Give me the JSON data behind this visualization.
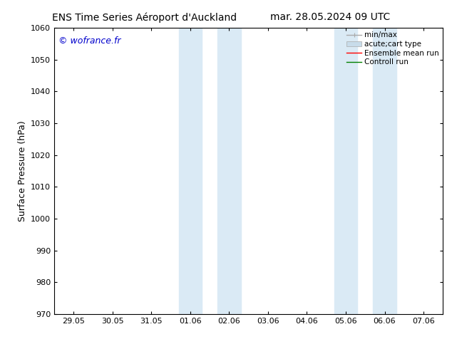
{
  "title_left": "ENS Time Series Aéroport d'Auckland",
  "title_right": "mar. 28.05.2024 09 UTC",
  "ylabel": "Surface Pressure (hPa)",
  "ylim": [
    970,
    1060
  ],
  "yticks": [
    970,
    980,
    990,
    1000,
    1010,
    1020,
    1030,
    1040,
    1050,
    1060
  ],
  "xtick_labels": [
    "29.05",
    "30.05",
    "31.05",
    "01.06",
    "02.06",
    "03.06",
    "04.06",
    "05.06",
    "06.06",
    "07.06"
  ],
  "xtick_positions": [
    0,
    1,
    2,
    3,
    4,
    5,
    6,
    7,
    8,
    9
  ],
  "xlim": [
    -0.5,
    9.5
  ],
  "shaded_regions": [
    {
      "xmin": 3.0,
      "xmax": 4.0,
      "color": "#daeaf5"
    },
    {
      "xmin": 4.5,
      "xmax": 5.0,
      "color": "#daeaf5"
    },
    {
      "xmin": 7.5,
      "xmax": 8.5,
      "color": "#daeaf5"
    }
  ],
  "watermark": "© wofrance.fr",
  "watermark_color": "#0000cc",
  "legend_entries": [
    {
      "label": "min/max",
      "color": "#aaaaaa",
      "lw": 1.0
    },
    {
      "label": "acute;cart type",
      "color": "#c8dcea",
      "lw": 8
    },
    {
      "label": "Ensemble mean run",
      "color": "#ff0000",
      "lw": 1.0
    },
    {
      "label": "Controll run",
      "color": "#008000",
      "lw": 1.0
    }
  ],
  "bg_color": "#ffffff",
  "tick_fontsize": 8,
  "ylabel_fontsize": 9,
  "title_fontsize": 10,
  "watermark_fontsize": 9,
  "legend_fontsize": 7.5
}
